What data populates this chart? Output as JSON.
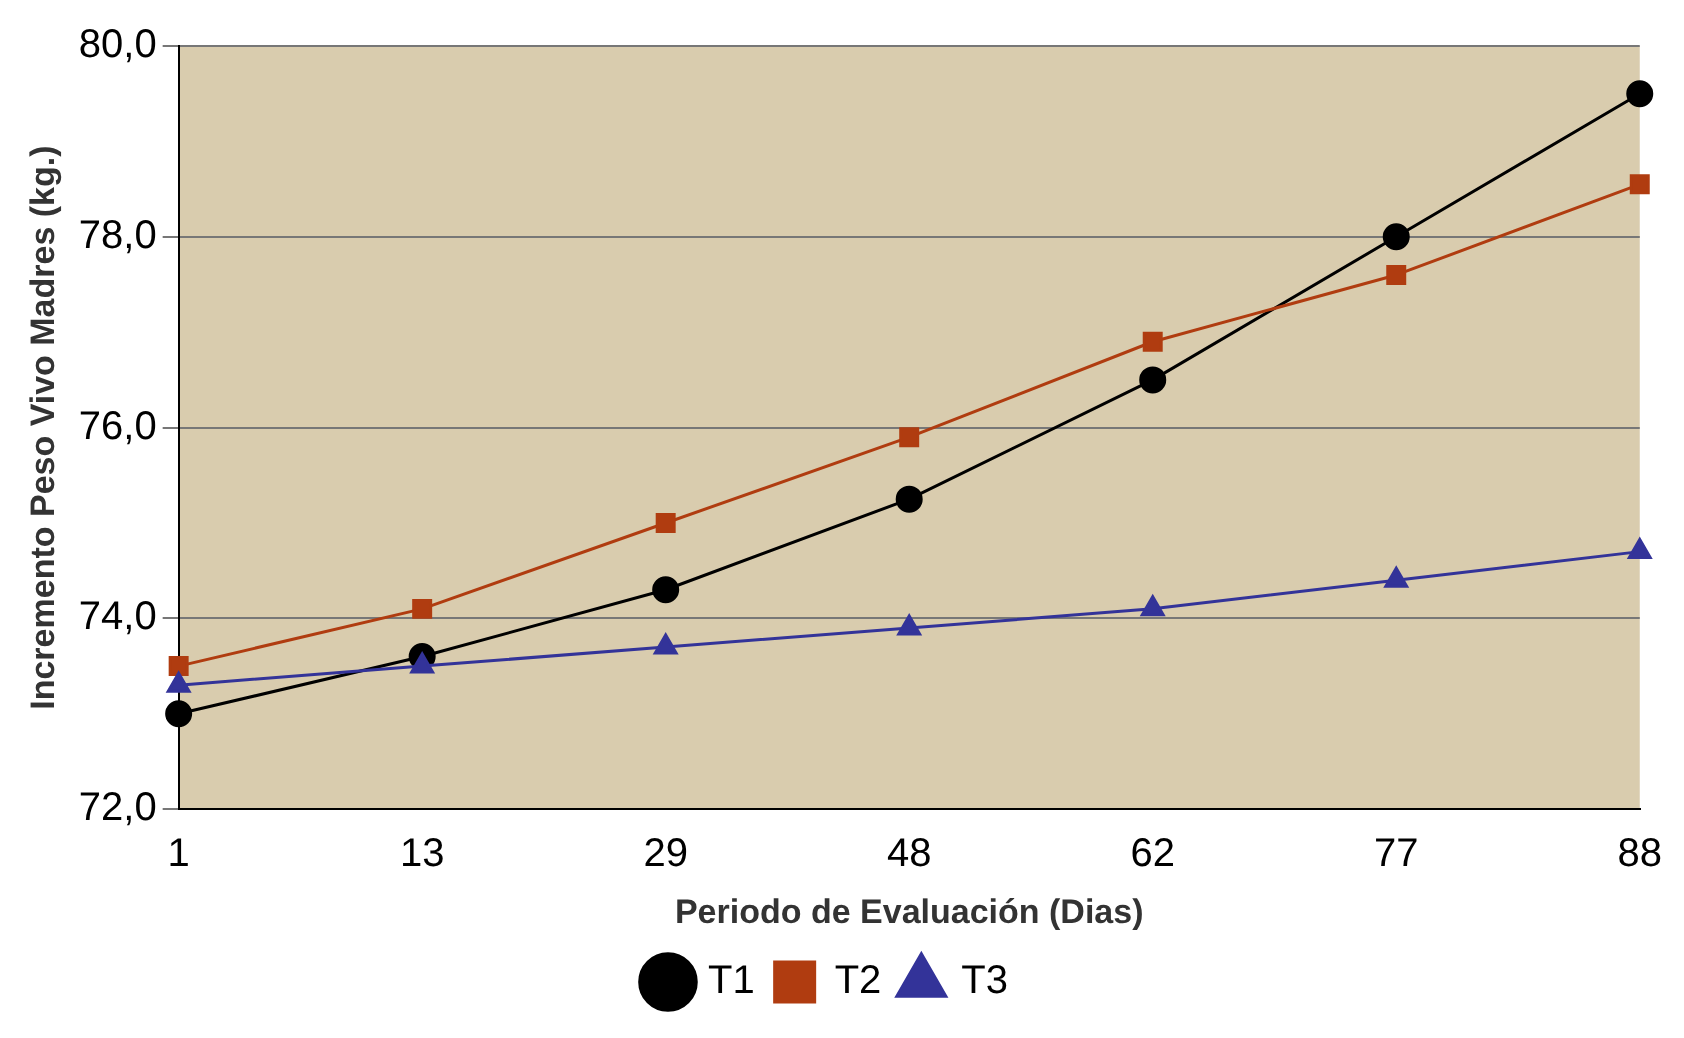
{
  "chart_data": {
    "type": "line",
    "xlabel": "Periodo de Evaluación (Dias)",
    "ylabel": "Incremento Peso Vivo Madres (kg.)",
    "categories": [
      "1",
      "13",
      "29",
      "48",
      "62",
      "77",
      "88"
    ],
    "series": [
      {
        "name": "T1",
        "color": "#000000",
        "marker": "circle",
        "values": [
          73.0,
          73.6,
          74.3,
          75.25,
          76.5,
          78.0,
          79.5
        ]
      },
      {
        "name": "T2",
        "color": "#b03c10",
        "marker": "square",
        "values": [
          73.5,
          74.1,
          75.0,
          75.9,
          76.9,
          77.6,
          78.55
        ]
      },
      {
        "name": "T3",
        "color": "#333399",
        "marker": "triangle",
        "values": [
          73.3,
          73.5,
          73.7,
          73.9,
          74.1,
          74.4,
          74.7
        ]
      }
    ],
    "ylim": [
      72,
      80
    ],
    "yticks": [
      {
        "value": 72,
        "label": "72,0"
      },
      {
        "value": 74,
        "label": "74,0"
      },
      {
        "value": 76,
        "label": "76,0"
      },
      {
        "value": 78,
        "label": "78,0"
      },
      {
        "value": 80,
        "label": "80,0"
      }
    ],
    "grid": "y",
    "legend": "bottom"
  }
}
